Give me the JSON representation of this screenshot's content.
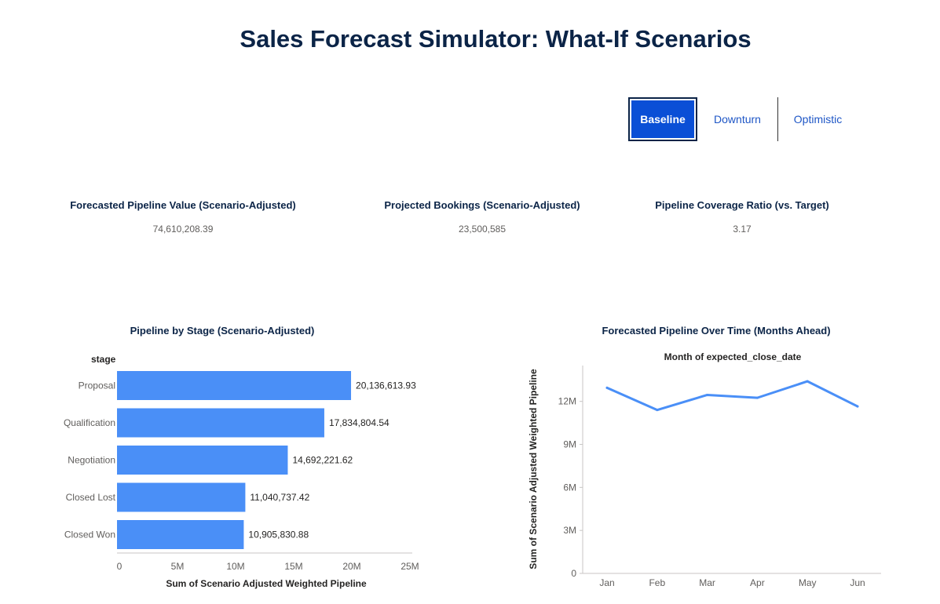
{
  "page": {
    "title": "Sales Forecast Simulator: What-If Scenarios"
  },
  "scenarios": {
    "tabs": [
      "Baseline",
      "Downturn",
      "Optimistic"
    ],
    "selected": "Baseline"
  },
  "kpis": [
    {
      "label": "Forecasted Pipeline Value (Scenario-Adjusted)",
      "value": "74,610,208.39"
    },
    {
      "label": "Projected Bookings (Scenario-Adjusted)",
      "value": "23,500,585"
    },
    {
      "label": "Pipeline Coverage Ratio (vs. Target)",
      "value": "3.17"
    }
  ],
  "colors": {
    "bar": "#4a8ff7",
    "line": "#4a8ff7",
    "title": "#0b2447",
    "accent": "#0a4fd6"
  },
  "chart_data": [
    {
      "type": "bar",
      "orientation": "horizontal",
      "title": "Pipeline by Stage (Scenario-Adjusted)",
      "category_header": "stage",
      "categories": [
        "Proposal",
        "Qualification",
        "Negotiation",
        "Closed Lost",
        "Closed Won"
      ],
      "values": [
        20136613.93,
        17834804.54,
        14692221.62,
        11040737.42,
        10905830.88
      ],
      "value_labels": [
        "20,136,613.93",
        "17,834,804.54",
        "14,692,221.62",
        "11,040,737.42",
        "10,905,830.88"
      ],
      "xlabel": "Sum of Scenario Adjusted Weighted Pipeline",
      "xlim": [
        0,
        25000000
      ],
      "xticks": [
        0,
        5000000,
        10000000,
        15000000,
        20000000,
        25000000
      ],
      "xtick_labels": [
        "0",
        "5M",
        "10M",
        "15M",
        "20M",
        "25M"
      ]
    },
    {
      "type": "line",
      "title": "Forecasted Pipeline Over Time (Months Ahead)",
      "subtitle": "Month of expected_close_date",
      "x": [
        "Jan",
        "Feb",
        "Mar",
        "Apr",
        "May",
        "Jun"
      ],
      "series": [
        {
          "name": "Sum of Scenario Adjusted Weighted Pipeline",
          "values": [
            12950000,
            11400000,
            12450000,
            12250000,
            13400000,
            11650000
          ]
        }
      ],
      "ylabel": "Sum of Scenario Adjusted Weighted Pipeline",
      "ylim": [
        0,
        14500000
      ],
      "yticks": [
        0,
        3000000,
        6000000,
        9000000,
        12000000
      ],
      "ytick_labels": [
        "0",
        "3M",
        "6M",
        "9M",
        "12M"
      ]
    }
  ]
}
